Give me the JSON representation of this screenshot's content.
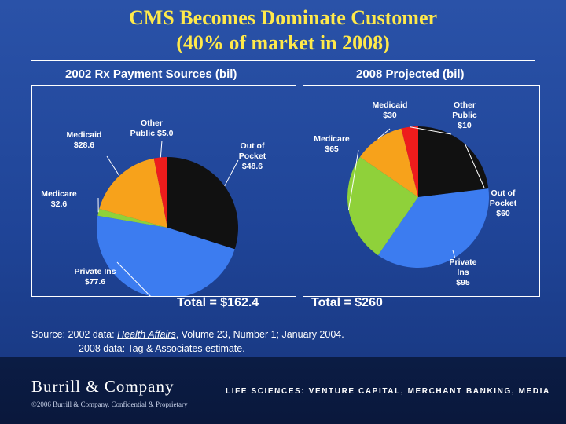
{
  "slide": {
    "title_line1": "CMS Becomes Dominate Customer",
    "title_line2": "(40% of market in 2008)",
    "source_prefix": "Source:  2002 data: ",
    "source_journal": "Health Affairs",
    "source_rest": ", Volume 23, Number 1; January 2004.",
    "source_line2": "2008 data: Tag & Associates estimate."
  },
  "footer": {
    "logo": "Burrill & Company",
    "tagline": "LIFE SCIENCES: VENTURE CAPITAL, MERCHANT BANKING, MEDIA",
    "copyright": "©2006 Burrill & Company. Confidential & Proprietary"
  },
  "chart_data": [
    {
      "type": "pie",
      "title": "2002 Rx Payment Sources (bil)",
      "total_label": "Total = $162.4",
      "slices": [
        {
          "label_lines": [
            "Out of",
            "Pocket",
            "$48.6"
          ],
          "value": 48.6,
          "color": "#111111"
        },
        {
          "label_lines": [
            "Private Ins",
            "$77.6"
          ],
          "value": 77.6,
          "color": "#3c7cf0"
        },
        {
          "label_lines": [
            "Medicare",
            "$2.6"
          ],
          "value": 2.6,
          "color": "#8fd13a"
        },
        {
          "label_lines": [
            "Medicaid",
            "$28.6"
          ],
          "value": 28.6,
          "color": "#f7a21b"
        },
        {
          "label_lines": [
            "Other",
            "Public $5.0"
          ],
          "value": 5.0,
          "color": "#ee1c1c"
        }
      ]
    },
    {
      "type": "pie",
      "title": "2008 Projected (bil)",
      "total_label": "Total = $260",
      "slices": [
        {
          "label_lines": [
            "Out of",
            "Pocket",
            "$60"
          ],
          "value": 60,
          "color": "#111111"
        },
        {
          "label_lines": [
            "Private",
            "Ins",
            "$95"
          ],
          "value": 95,
          "color": "#3c7cf0"
        },
        {
          "label_lines": [
            "Medicare",
            "$65"
          ],
          "value": 65,
          "color": "#8fd13a"
        },
        {
          "label_lines": [
            "Medicaid",
            "$30"
          ],
          "value": 30,
          "color": "#f7a21b"
        },
        {
          "label_lines": [
            "Other",
            "Public",
            "$10"
          ],
          "value": 10,
          "color": "#ee1c1c"
        }
      ]
    }
  ]
}
